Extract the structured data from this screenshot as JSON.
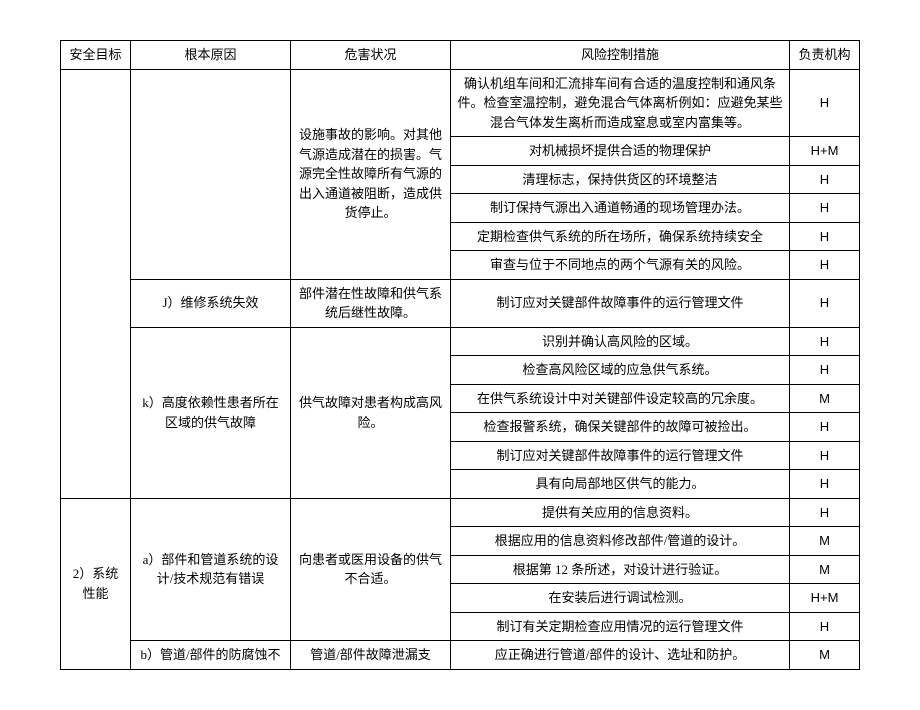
{
  "header": {
    "safety_goal": "安全目标",
    "root_cause": "根本原因",
    "hazard": "危害状况",
    "measure": "风险控制措施",
    "responsible": "负责机构"
  },
  "rows": [
    {
      "safety_goal": "",
      "cause": "",
      "hazard": "设施事故的影响。对其他气源造成潜在的损害。气源完全性故障所有气源的出入通道被阻断，造成供货停止。",
      "measures": [
        {
          "text": "确认机组车间和汇流排车间有合适的温度控制和通风条件。检查室温控制，避免混合气体离析例如：应避免某些混合气体发生离析而造成窒息或室内富集等。",
          "resp": "H"
        },
        {
          "text": "对机械损坏提供合适的物理保护",
          "resp": "H+M"
        },
        {
          "text": "清理标志，保持供货区的环境整洁",
          "resp": "H"
        },
        {
          "text": "制订保持气源出入通道畅通的现场管理办法。",
          "resp": "H"
        },
        {
          "text": "定期检查供气系统的所在场所，确保系统持续安全",
          "resp": "H"
        },
        {
          "text": "审查与位于不同地点的两个气源有关的风险。",
          "resp": "H"
        }
      ]
    },
    {
      "cause": "J）维修系统失效",
      "hazard": "部件潜在性故障和供气系统后继性故障。",
      "measures": [
        {
          "text": "制订应对关键部件故障事件的运行管理文件",
          "resp": "H"
        }
      ]
    },
    {
      "cause": "k）高度依赖性患者所在区域的供气故障",
      "hazard": "供气故障对患者构成高风险。",
      "measures": [
        {
          "text": "识别并确认高风险的区域。",
          "resp": "H"
        },
        {
          "text": "检查高风险区域的应急供气系统。",
          "resp": "H"
        },
        {
          "text": "在供气系统设计中对关键部件设定较高的冗余度。",
          "resp": "M"
        },
        {
          "text": "检查报警系统，确保关键部件的故障可被捡出。",
          "resp": "H"
        },
        {
          "text": "制订应对关键部件故障事件的运行管理文件",
          "resp": "H"
        },
        {
          "text": "具有向局部地区供气的能力。",
          "resp": "H"
        }
      ]
    },
    {
      "safety_goal": "2）系统性能",
      "cause": "a）部件和管道系统的设计/技术规范有错误",
      "hazard": "向患者或医用设备的供气不合适。",
      "measures": [
        {
          "text": "提供有关应用的信息资料。",
          "resp": "H"
        },
        {
          "text": "根据应用的信息资料修改部件/管道的设计。",
          "resp": "M"
        },
        {
          "text": "根据第 12 条所述，对设计进行验证。",
          "resp": "M"
        },
        {
          "text": "在安装后进行调试检测。",
          "resp": "H+M"
        },
        {
          "text": "制订有关定期检查应用情况的运行管理文件",
          "resp": "H"
        }
      ]
    },
    {
      "cause": "b）管道/部件的防腐蚀不",
      "hazard": "管道/部件故障泄漏支",
      "measures": [
        {
          "text": "应正确进行管道/部件的设计、选址和防护。",
          "resp": "M"
        }
      ]
    }
  ]
}
